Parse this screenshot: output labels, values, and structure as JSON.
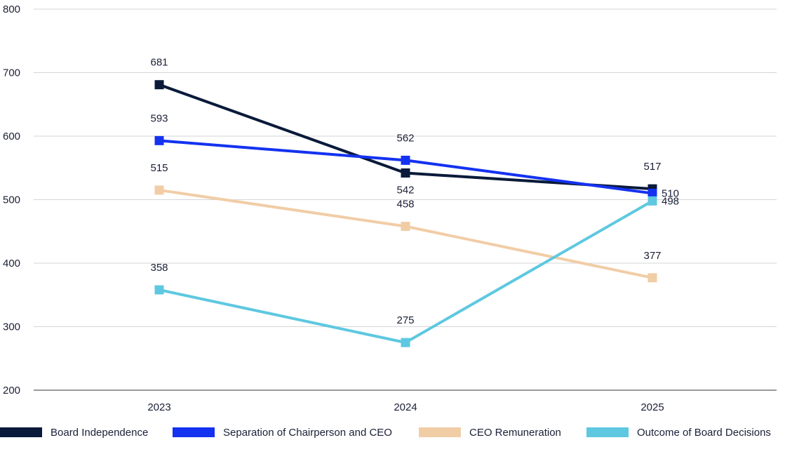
{
  "chart_data": {
    "type": "line",
    "categories": [
      "2023",
      "2024",
      "2025"
    ],
    "ylim": [
      200,
      800
    ],
    "yticks": [
      200,
      300,
      400,
      500,
      600,
      700,
      800
    ],
    "grid": true,
    "legend_position": "bottom",
    "series": [
      {
        "name": "Board Independence",
        "color": "#0a1a3a",
        "values": [
          681,
          542,
          517
        ]
      },
      {
        "name": "Separation of Chairperson and CEO",
        "color": "#1432f0",
        "values": [
          593,
          562,
          510
        ]
      },
      {
        "name": "CEO Remuneration",
        "color": "#f1cda6",
        "values": [
          515,
          458,
          377
        ]
      },
      {
        "name": "Outcome of Board Decisions",
        "color": "#5ec8e0",
        "values": [
          358,
          275,
          498
        ]
      }
    ]
  }
}
